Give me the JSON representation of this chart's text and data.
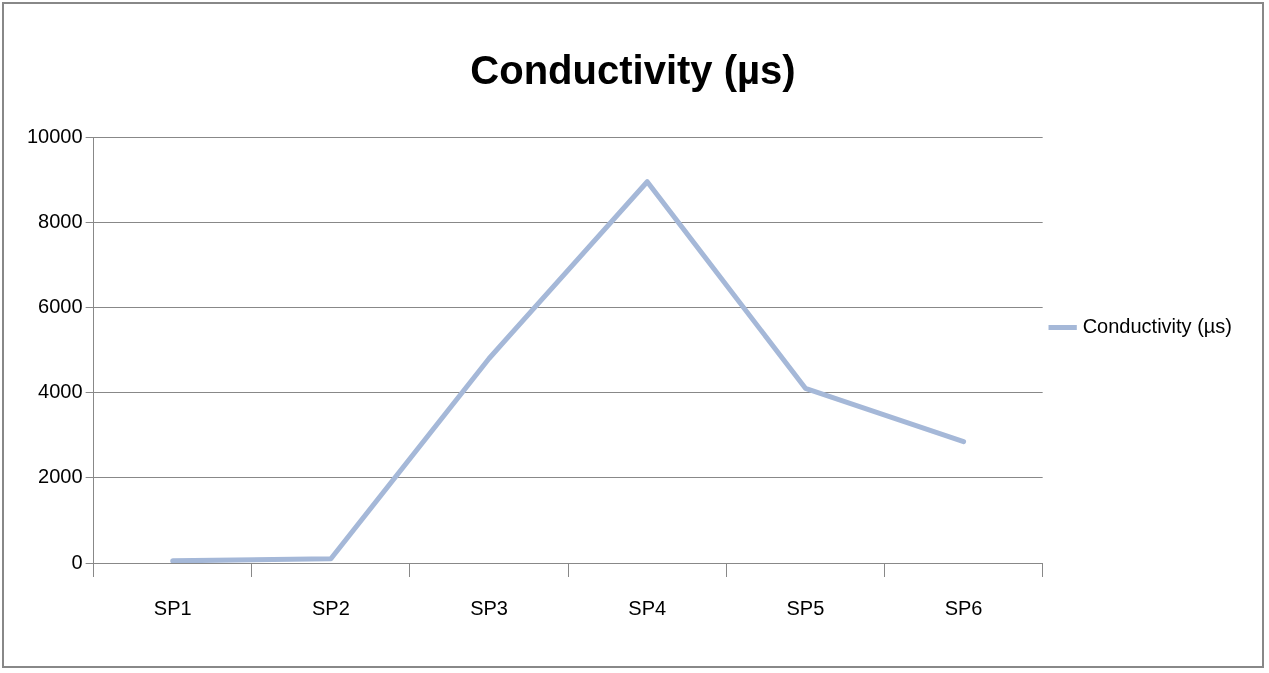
{
  "chart_data": {
    "type": "line",
    "title": "Conductivity (µs)",
    "categories": [
      "SP1",
      "SP2",
      "SP3",
      "SP4",
      "SP5",
      "SP6"
    ],
    "series": [
      {
        "name": "Conductivity (µs)",
        "color": "#a5b8d8",
        "values": [
          50,
          100,
          4800,
          8950,
          4100,
          2850
        ]
      }
    ],
    "ylim": [
      0,
      10000
    ],
    "yticks": [
      0,
      2000,
      4000,
      6000,
      8000,
      10000
    ],
    "grid": "y",
    "legend": "right",
    "marker": "none",
    "line_style": "solid"
  }
}
